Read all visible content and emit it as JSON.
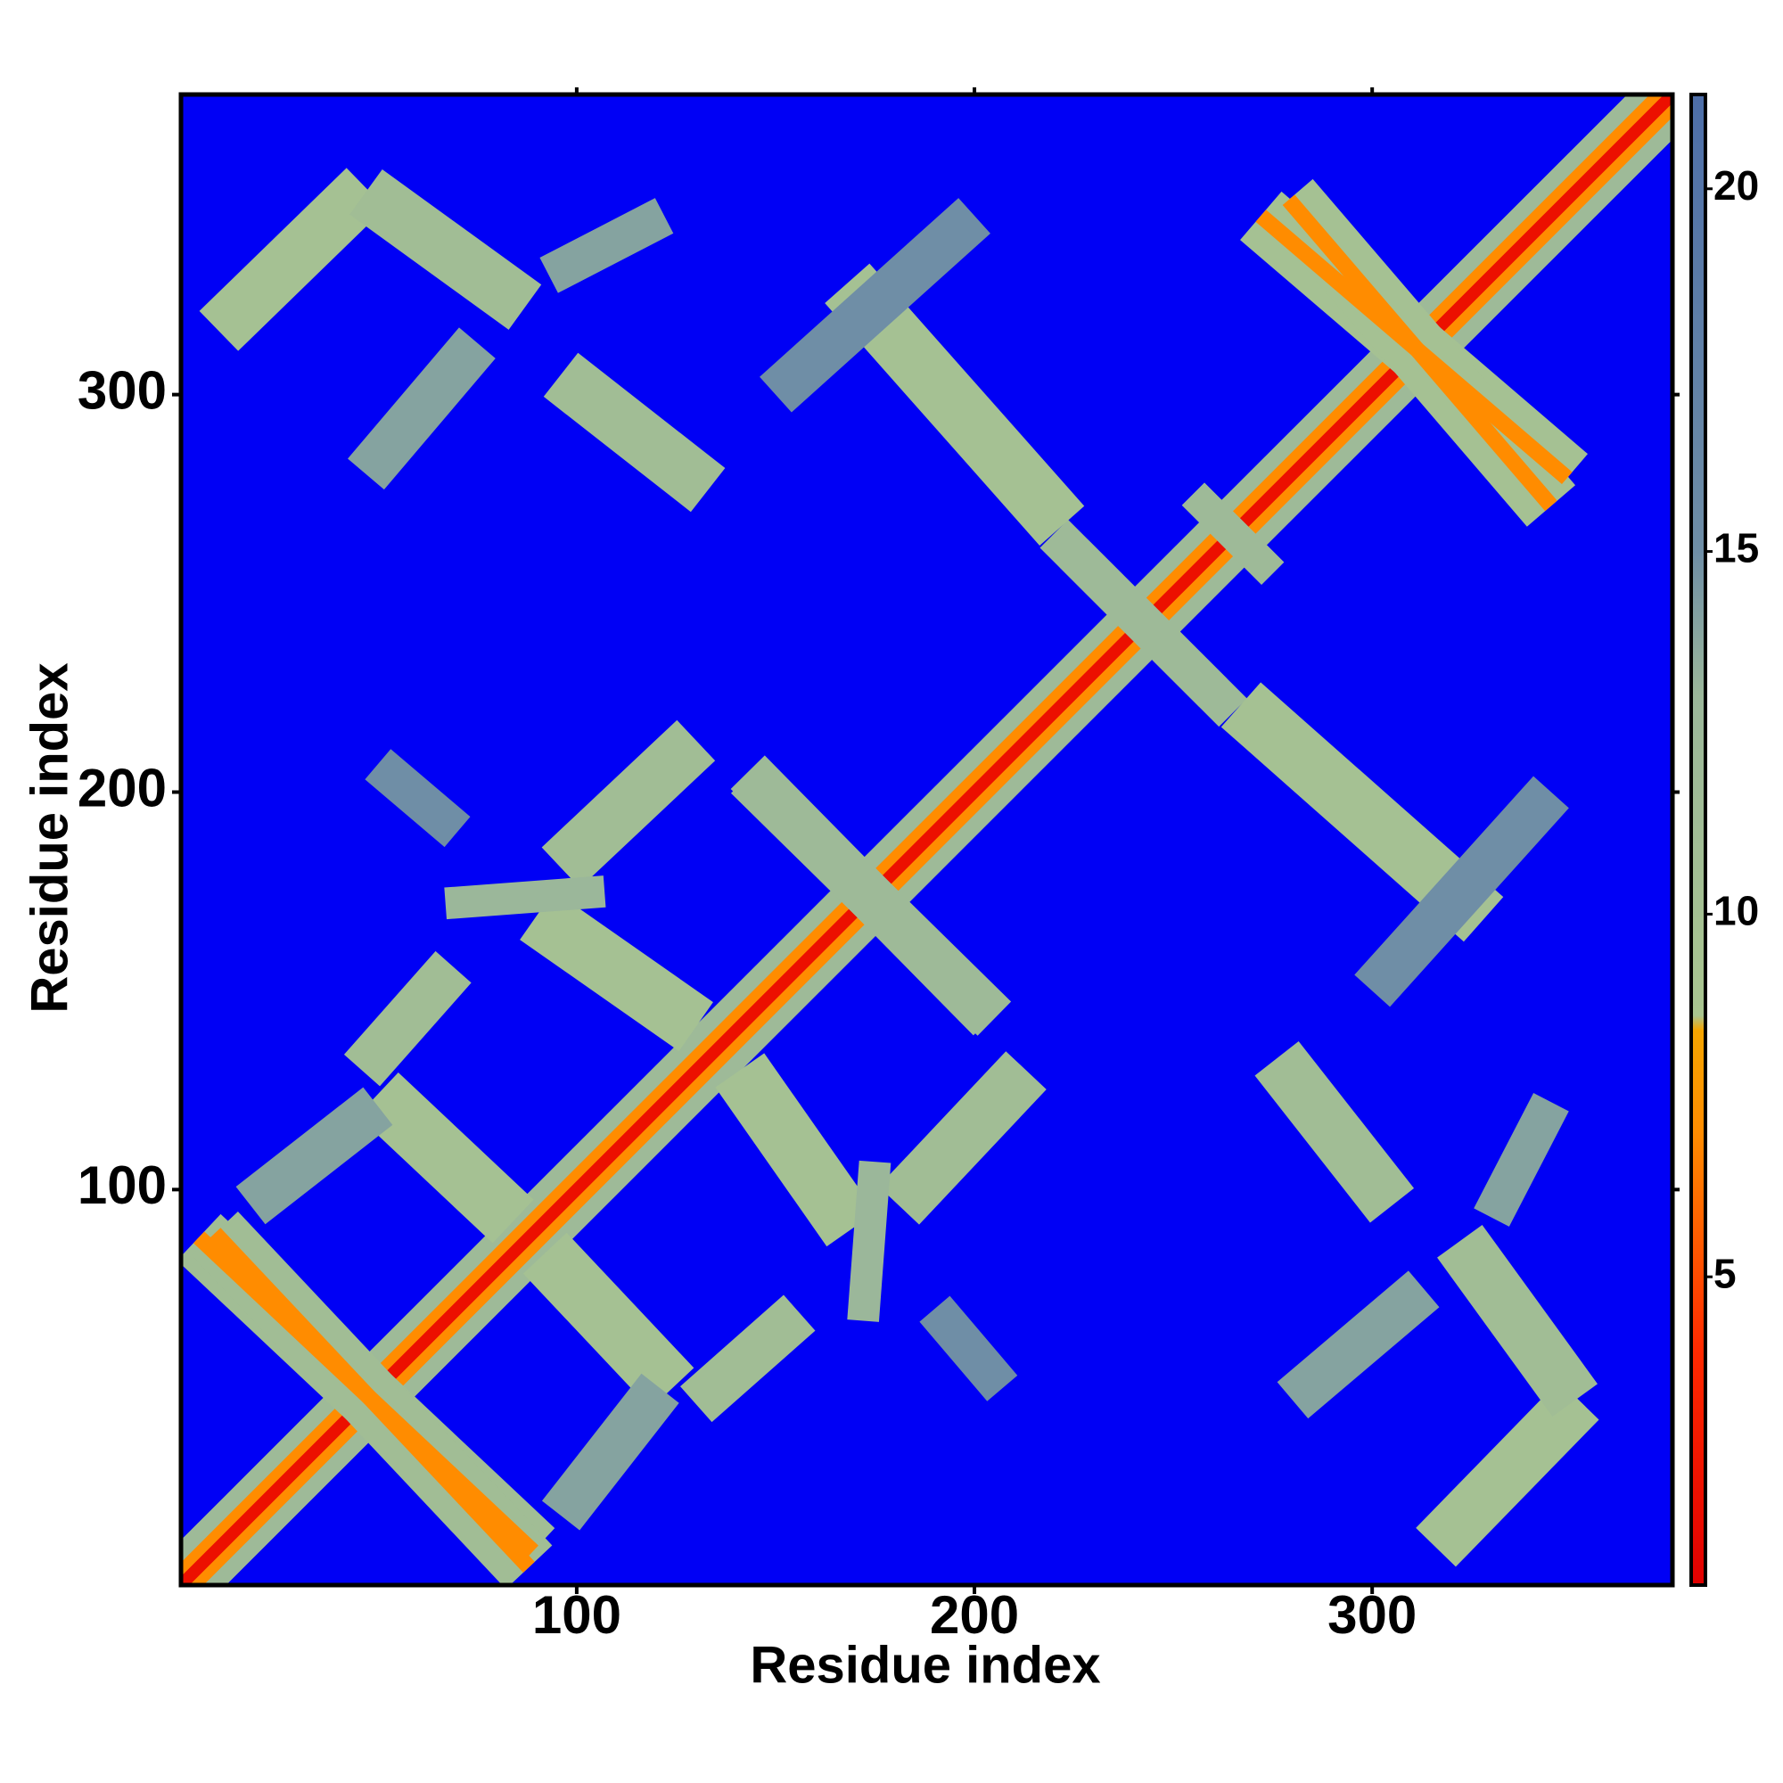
{
  "chart_data": {
    "type": "heatmap",
    "x_label": "Residue index",
    "y_label": "Residue index",
    "xlim": [
      0.5,
      375.5
    ],
    "ylim": [
      0.5,
      375.5
    ],
    "xticks": [
      100,
      200,
      300
    ],
    "yticks": [
      100,
      200,
      300
    ],
    "symmetric": true,
    "over_color": "#0000f5",
    "clim": [
      0.75,
      21.3
    ],
    "cticks": [
      5,
      10,
      15,
      20
    ],
    "colorscale": [
      {
        "value": 0.75,
        "color": "#e00000"
      },
      {
        "value": 4,
        "color": "#ff2a00"
      },
      {
        "value": 7,
        "color": "#ff8c00"
      },
      {
        "value": 8.4,
        "color": "#f5a500"
      },
      {
        "value": 8.6,
        "color": "#a9c58f"
      },
      {
        "value": 13,
        "color": "#9bb79a"
      },
      {
        "value": 15,
        "color": "#6f8ea6"
      },
      {
        "value": 21.3,
        "color": "#4d6ea8"
      }
    ],
    "bands": [
      {
        "x": [
          1,
          375
        ],
        "y": [
          1,
          375
        ],
        "width": 16,
        "value": 12
      },
      {
        "x": [
          1,
          375
        ],
        "y": [
          1,
          375
        ],
        "width": 8,
        "value": 7
      },
      {
        "x": [
          1,
          375
        ],
        "y": [
          1,
          375
        ],
        "width": 3,
        "value": 2
      },
      {
        "x": [
          5,
          89
        ],
        "y": [
          88,
          9
        ],
        "width": 16,
        "value": 11
      },
      {
        "x": [
          5,
          89
        ],
        "y": [
          88,
          9
        ],
        "width": 4,
        "value": 7
      },
      {
        "x": [
          50,
          84
        ],
        "y": [
          124,
          92
        ],
        "width": 15,
        "value": 10
      },
      {
        "x": [
          90,
          130
        ],
        "y": [
          169,
          141
        ],
        "width": 15,
        "value": 10
      },
      {
        "x": [
          96,
          130
        ],
        "y": [
          181,
          213
        ],
        "width": 14,
        "value": 11
      },
      {
        "x": [
          143,
          205
        ],
        "y": [
          204,
          143
        ],
        "width": 12,
        "value": 12
      },
      {
        "x": [
          220,
          260
        ],
        "y": [
          265,
          225
        ],
        "width": 10,
        "value": 12
      },
      {
        "x": [
          255,
          275
        ],
        "y": [
          275,
          255
        ],
        "width": 8,
        "value": 12
      },
      {
        "x": [
          272,
          349
        ],
        "y": [
          345,
          279
        ],
        "width": 16,
        "value": 10
      },
      {
        "x": [
          272,
          349
        ],
        "y": [
          345,
          279
        ],
        "width": 4,
        "value": 7
      },
      {
        "x": [
          10,
          47
        ],
        "y": [
          316,
          352
        ],
        "width": 14,
        "value": 10
      },
      {
        "x": [
          47,
          87
        ],
        "y": [
          351,
          322
        ],
        "width": 14,
        "value": 11
      },
      {
        "x": [
          47,
          75
        ],
        "y": [
          280,
          313
        ],
        "width": 12,
        "value": 14
      },
      {
        "x": [
          93,
          122
        ],
        "y": [
          330,
          345
        ],
        "width": 10,
        "value": 14
      },
      {
        "x": [
          96,
          133
        ],
        "y": [
          305,
          276
        ],
        "width": 14,
        "value": 11
      },
      {
        "x": [
          168,
          222
        ],
        "y": [
          328,
          267
        ],
        "width": 15,
        "value": 10
      },
      {
        "x": [
          150,
          200
        ],
        "y": [
          300,
          345
        ],
        "width": 12,
        "value": 15
      },
      {
        "x": [
          18,
          50
        ],
        "y": [
          96,
          121
        ],
        "width": 12,
        "value": 14
      },
      {
        "x": [
          130,
          156
        ],
        "y": [
          46,
          69
        ],
        "width": 12,
        "value": 11
      },
      {
        "x": [
          50,
          70
        ],
        "y": [
          207,
          190
        ],
        "width": 10,
        "value": 15
      },
      {
        "x": [
          67,
          107
        ],
        "y": [
          172,
          175
        ],
        "width": 8,
        "value": 13
      }
    ]
  }
}
